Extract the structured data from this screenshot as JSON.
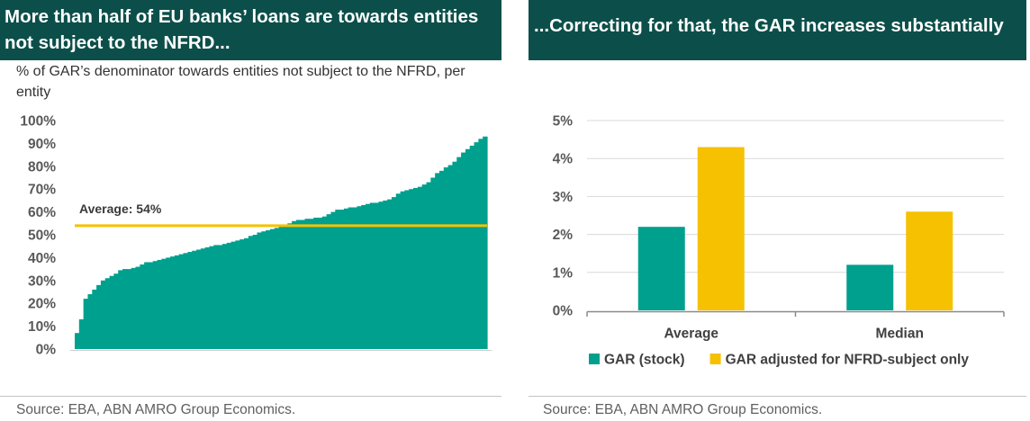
{
  "colors": {
    "header_bg": "#0C4F4A",
    "header_text": "#FFFFFF"
  },
  "chart_data": [
    {
      "type": "area",
      "title": "More than half of EU banks’ loans are towards entities not subject to the NFRD...",
      "subtitle": "% of GAR’s denominator towards entities not subject to the NFRD, per entity",
      "ylim": [
        0,
        100
      ],
      "y_ticks": [
        0,
        10,
        20,
        30,
        40,
        50,
        60,
        70,
        80,
        90,
        100
      ],
      "y_tick_labels": [
        "0%",
        "10%",
        "20%",
        "30%",
        "40%",
        "50%",
        "60%",
        "70%",
        "80%",
        "90%",
        "100%"
      ],
      "values": [
        7,
        13,
        22,
        24,
        26,
        28,
        30,
        31,
        32,
        33,
        34.5,
        35,
        35,
        35.5,
        36,
        37,
        38,
        38,
        38.5,
        39,
        39.5,
        40,
        40.5,
        41,
        41.5,
        42,
        42.5,
        43,
        43.5,
        44,
        44.5,
        45,
        45.5,
        45.5,
        46,
        46.5,
        47,
        47.5,
        48,
        48.5,
        49.5,
        50,
        51,
        51.5,
        52,
        52.5,
        53,
        53.5,
        54,
        55,
        56,
        56.5,
        56.5,
        57,
        57,
        57.5,
        57.5,
        58,
        59,
        60,
        61,
        61,
        61.5,
        62,
        62,
        62.5,
        63,
        63.5,
        64,
        64,
        64.5,
        65,
        65.5,
        66.5,
        68,
        69,
        69.5,
        70,
        70.5,
        71,
        72,
        73,
        75,
        77,
        78,
        79.5,
        80.5,
        82,
        84,
        86,
        87.5,
        89,
        90.5,
        92,
        93
      ],
      "average": {
        "label": "Average: 54%",
        "value": 54
      },
      "grid": false,
      "colors": {
        "area": "#00A08E",
        "average_line": "#F5C100"
      },
      "source": "Source: EBA, ABN AMRO Group Economics."
    },
    {
      "type": "bar",
      "title": "...Correcting for that, the GAR increases substantially",
      "categories": [
        "Average",
        "Median"
      ],
      "series": [
        {
          "name": "GAR (stock)",
          "values": [
            2.2,
            1.2
          ],
          "color": "#00A08E"
        },
        {
          "name": "GAR adjusted for NFRD-subject only",
          "values": [
            4.3,
            2.6
          ],
          "color": "#F5C100"
        }
      ],
      "ylim": [
        0,
        5
      ],
      "y_ticks": [
        0,
        1,
        2,
        3,
        4,
        5
      ],
      "y_tick_labels": [
        "0%",
        "1%",
        "2%",
        "3%",
        "4%",
        "5%"
      ],
      "grid": true,
      "legend": "bottom-left",
      "source": "Source: EBA, ABN AMRO Group Economics."
    }
  ]
}
